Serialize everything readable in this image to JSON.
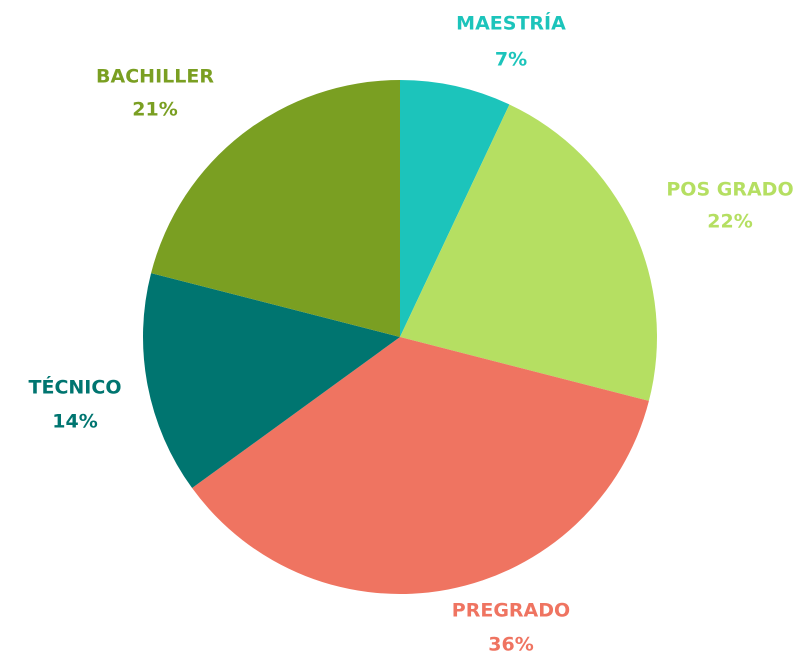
{
  "chart_data": {
    "type": "pie",
    "categories": [
      "MAESTRÍA",
      "POS GRADO",
      "PREGRADO",
      "TÉCNICO",
      "BACHILLER"
    ],
    "values": [
      7,
      22,
      36,
      14,
      21
    ],
    "value_labels": [
      "7%",
      "22%",
      "36%",
      "14%",
      "21%"
    ],
    "colors": [
      "#1cc4bb",
      "#b5df62",
      "#ef7461",
      "#007570",
      "#7a9f22"
    ]
  }
}
